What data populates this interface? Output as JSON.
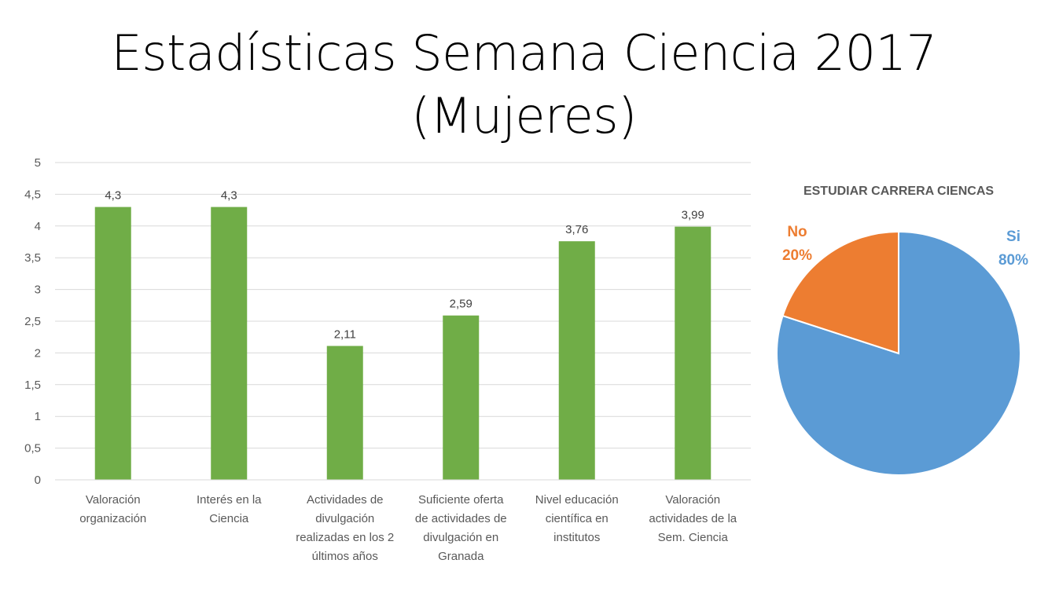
{
  "title": {
    "line1": "Estadísticas Semana Ciencia 2017",
    "line2": "(Mujeres)"
  },
  "colors": {
    "bar": "#70ad47",
    "grid": "#d9d9d9",
    "axis_text": "#595959",
    "pie_si": "#5b9bd5",
    "pie_no": "#ed7d31"
  },
  "chart_data": [
    {
      "type": "bar",
      "title": "",
      "xlabel": "",
      "ylabel": "",
      "ylim": [
        0,
        5
      ],
      "yticks": [
        "0",
        "0,5",
        "1",
        "1,5",
        "2",
        "2,5",
        "3",
        "3,5",
        "4",
        "4,5",
        "5"
      ],
      "categories": [
        [
          "Valoración",
          "organización"
        ],
        [
          "Interés en la",
          "Ciencia"
        ],
        [
          "Actividades de",
          "divulgación",
          "realizadas en los 2",
          "últimos años"
        ],
        [
          "Suficiente oferta",
          "de actividades de",
          "divulgación en",
          "Granada"
        ],
        [
          "Nivel educación",
          "científica en",
          "institutos"
        ],
        [
          "Valoración",
          "actividades de la",
          "Sem. Ciencia"
        ]
      ],
      "values": [
        4.3,
        4.3,
        2.11,
        2.59,
        3.76,
        3.99
      ],
      "data_labels": [
        "4,3",
        "4,3",
        "2,11",
        "2,59",
        "3,76",
        "3,99"
      ],
      "grid": true,
      "legend": "none"
    },
    {
      "type": "pie",
      "title": "ESTUDIAR CARRERA CIENCAS",
      "slices": [
        {
          "name": "Si",
          "value": 80,
          "label": "80%"
        },
        {
          "name": "No",
          "value": 20,
          "label": "20%"
        }
      ]
    }
  ]
}
